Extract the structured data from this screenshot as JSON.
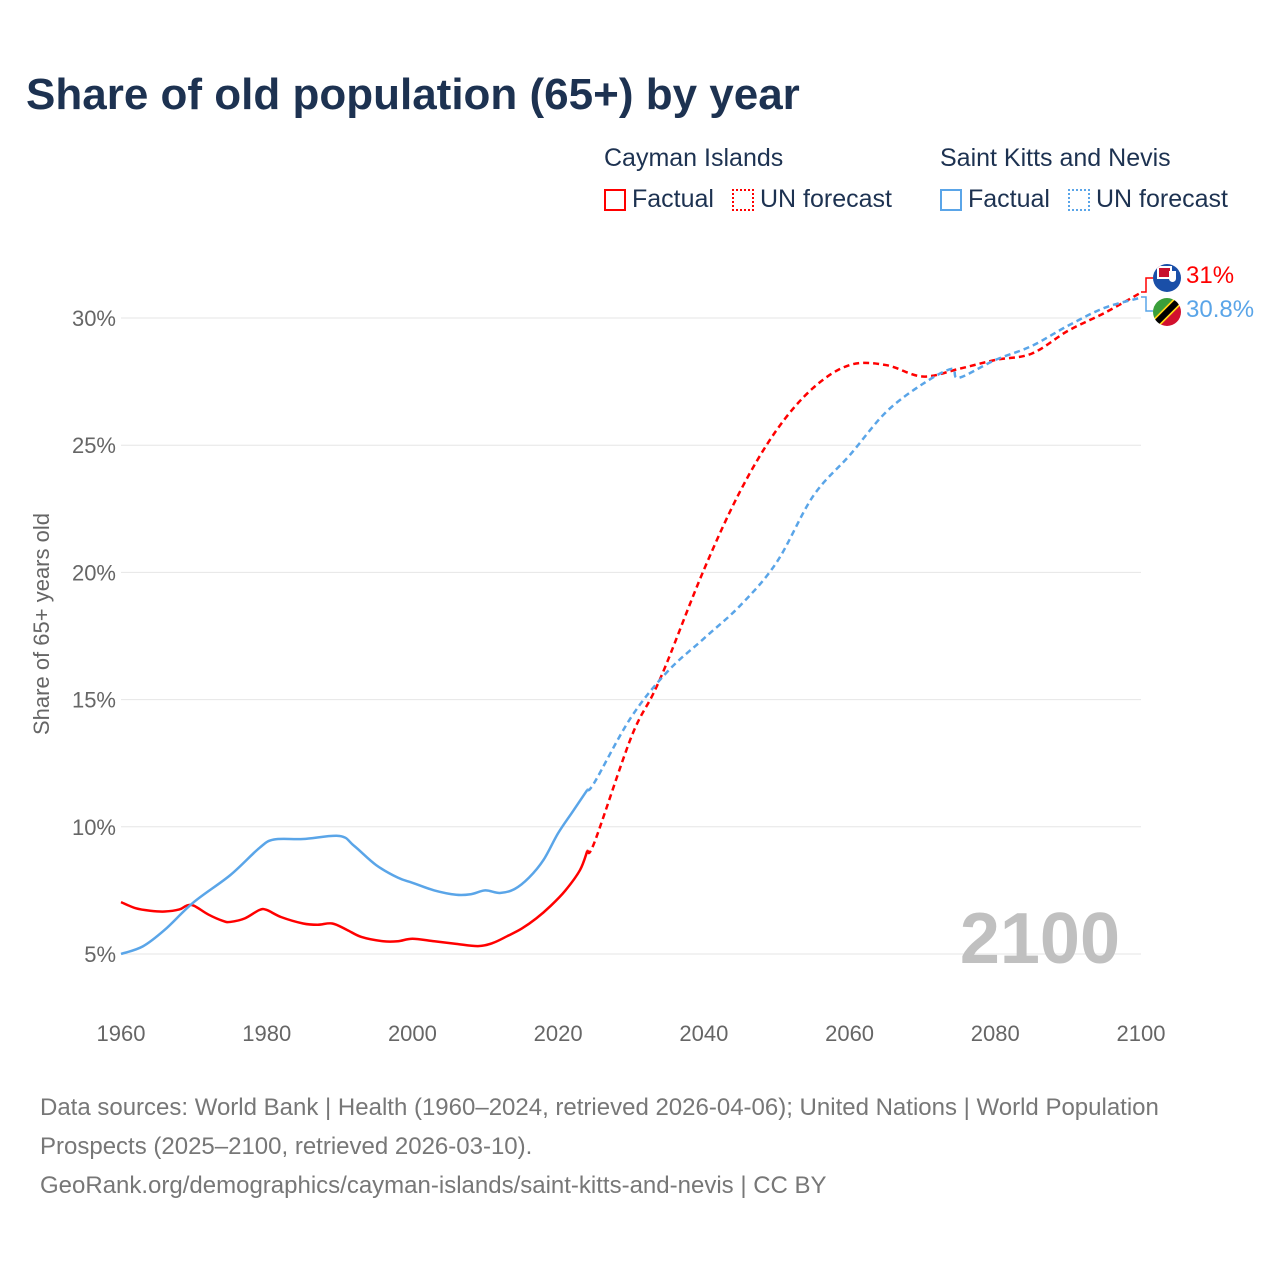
{
  "title": "Share of old population (65+) by year",
  "legend": [
    {
      "country": "Cayman Islands",
      "color": "#ff0000",
      "factual": "Factual",
      "forecast": "UN forecast"
    },
    {
      "country": "Saint Kitts and Nevis",
      "color": "#5aa5e8",
      "factual": "Factual",
      "forecast": "UN forecast"
    }
  ],
  "end_labels": {
    "cayman": "31%",
    "skn": "30.8%"
  },
  "watermark_year": "2100",
  "footer": {
    "line1": "Data sources: World Bank | Health (1960–2024, retrieved 2026-04-06); United Nations | World Population Prospects (2025–2100, retrieved 2026-03-10).",
    "line2": "GeoRank.org/demographics/cayman-islands/saint-kitts-and-nevis | CC BY"
  },
  "chart_data": {
    "type": "line",
    "title": "Share of old population (65+) by year",
    "xlabel": "",
    "ylabel": "Share of 65+ years old",
    "xlim": [
      1960,
      2100
    ],
    "ylim": [
      5,
      30
    ],
    "xticks": [
      "1960",
      "1980",
      "2000",
      "2020",
      "2040",
      "2060",
      "2080",
      "2100"
    ],
    "yticks": [
      "5%",
      "10%",
      "15%",
      "20%",
      "25%",
      "30%"
    ],
    "grid": true,
    "legend_position": "top-right",
    "series": [
      {
        "name": "Cayman Islands",
        "color": "#ff0000",
        "factual": [
          [
            1960,
            7.04
          ],
          [
            1962,
            6.8
          ],
          [
            1964,
            6.7
          ],
          [
            1966,
            6.67
          ],
          [
            1968,
            6.75
          ],
          [
            1969,
            6.9
          ],
          [
            1970,
            6.9
          ],
          [
            1972,
            6.55
          ],
          [
            1974,
            6.3
          ],
          [
            1975,
            6.26
          ],
          [
            1977,
            6.4
          ],
          [
            1979,
            6.73
          ],
          [
            1980,
            6.73
          ],
          [
            1982,
            6.45
          ],
          [
            1985,
            6.2
          ],
          [
            1987,
            6.15
          ],
          [
            1989,
            6.2
          ],
          [
            1991,
            5.95
          ],
          [
            1993,
            5.67
          ],
          [
            1996,
            5.5
          ],
          [
            1998,
            5.5
          ],
          [
            2000,
            5.6
          ],
          [
            2003,
            5.5
          ],
          [
            2006,
            5.4
          ],
          [
            2009,
            5.31
          ],
          [
            2011,
            5.43
          ],
          [
            2013,
            5.7
          ],
          [
            2015,
            6.0
          ],
          [
            2017,
            6.4
          ],
          [
            2019,
            6.9
          ],
          [
            2021,
            7.5
          ],
          [
            2023,
            8.3
          ],
          [
            2024,
            9.05
          ]
        ],
        "forecast": [
          [
            2024,
            9.05
          ],
          [
            2025,
            9.4
          ],
          [
            2030,
            13.5
          ],
          [
            2033,
            15.2
          ],
          [
            2035,
            16.5
          ],
          [
            2040,
            20.1
          ],
          [
            2045,
            23.2
          ],
          [
            2050,
            25.6
          ],
          [
            2055,
            27.25
          ],
          [
            2060,
            28.15
          ],
          [
            2065,
            28.15
          ],
          [
            2070,
            27.7
          ],
          [
            2075,
            28.0
          ],
          [
            2080,
            28.35
          ],
          [
            2085,
            28.6
          ],
          [
            2090,
            29.5
          ],
          [
            2095,
            30.2
          ],
          [
            2100,
            31.0
          ]
        ]
      },
      {
        "name": "Saint Kitts and Nevis",
        "color": "#5aa5e8",
        "factual": [
          [
            1960,
            5.0
          ],
          [
            1963,
            5.3
          ],
          [
            1966,
            5.95
          ],
          [
            1970,
            7.04
          ],
          [
            1975,
            8.1
          ],
          [
            1979,
            9.17
          ],
          [
            1981,
            9.5
          ],
          [
            1985,
            9.52
          ],
          [
            1990,
            9.64
          ],
          [
            1992,
            9.25
          ],
          [
            1995,
            8.5
          ],
          [
            1998,
            8.0
          ],
          [
            2000,
            7.8
          ],
          [
            2003,
            7.5
          ],
          [
            2006,
            7.33
          ],
          [
            2008,
            7.35
          ],
          [
            2010,
            7.5
          ],
          [
            2012,
            7.4
          ],
          [
            2014,
            7.55
          ],
          [
            2016,
            8.0
          ],
          [
            2018,
            8.7
          ],
          [
            2020,
            9.75
          ],
          [
            2022,
            10.6
          ],
          [
            2024,
            11.45
          ]
        ],
        "forecast": [
          [
            2024,
            11.45
          ],
          [
            2025,
            11.75
          ],
          [
            2030,
            14.3
          ],
          [
            2035,
            16.1
          ],
          [
            2040,
            17.4
          ],
          [
            2045,
            18.7
          ],
          [
            2050,
            20.4
          ],
          [
            2055,
            23.0
          ],
          [
            2060,
            24.6
          ],
          [
            2065,
            26.3
          ],
          [
            2070,
            27.4
          ],
          [
            2074,
            28.0
          ],
          [
            2075,
            27.65
          ],
          [
            2080,
            28.35
          ],
          [
            2085,
            28.9
          ],
          [
            2090,
            29.7
          ],
          [
            2095,
            30.4
          ],
          [
            2100,
            30.8
          ]
        ]
      }
    ]
  }
}
